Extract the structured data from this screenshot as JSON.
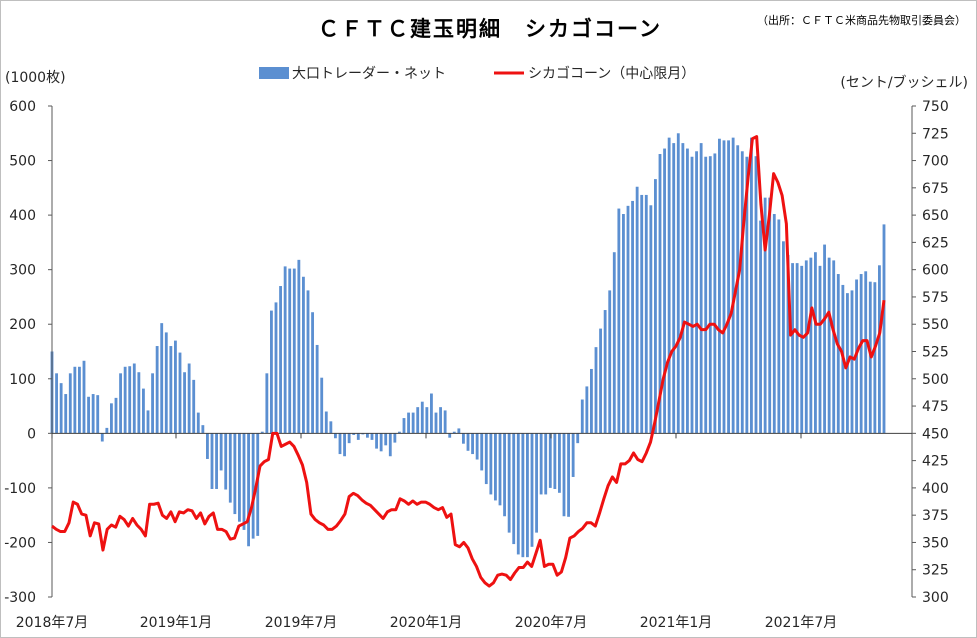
{
  "chart_data": {
    "type": "bar+line",
    "title": "ＣＦＴＣ建玉明細　シカゴコーン",
    "source": "（出所：ＣＦＴＣ米商品先物取引委員会）",
    "left_axis_unit": "(1000枚)",
    "right_axis_unit": "(セント/ブッシェル)",
    "y_left": {
      "min": -300,
      "max": 600,
      "ticks": [
        "600",
        "500",
        "400",
        "300",
        "200",
        "100",
        "0",
        "-100",
        "-200",
        "-300"
      ]
    },
    "y_right": {
      "min": 300,
      "max": 750,
      "ticks": [
        "750",
        "725",
        "700",
        "675",
        "650",
        "625",
        "600",
        "575",
        "550",
        "525",
        "500",
        "475",
        "450",
        "425",
        "400",
        "375",
        "350",
        "325",
        "300"
      ]
    },
    "x_labels": [
      "2018年7月",
      "2019年1月",
      "2019年7月",
      "2020年1月",
      "2020年7月",
      "2021年1月",
      "2021年7月"
    ],
    "grid": false,
    "legend": "top-center",
    "series": [
      {
        "name": "大口トレーダー・ネット",
        "type": "bar",
        "axis": "left",
        "color": "#5b8fd1",
        "values": [
          150,
          110,
          92,
          72,
          110,
          122,
          122,
          133,
          67,
          72,
          70,
          -15,
          10,
          55,
          65,
          110,
          122,
          123,
          128,
          112,
          82,
          42,
          110,
          160,
          202,
          185,
          160,
          170,
          148,
          112,
          128,
          98,
          38,
          15,
          -47,
          -102,
          -102,
          -68,
          -103,
          -127,
          -148,
          -162,
          -177,
          -207,
          -193,
          -188,
          3,
          110,
          225,
          240,
          270,
          306,
          302,
          302,
          318,
          287,
          262,
          222,
          162,
          102,
          40,
          22,
          -9,
          -38,
          -42,
          -18,
          -3,
          -12,
          -2,
          -8,
          -12,
          -28,
          -33,
          -22,
          -42,
          -17,
          3,
          28,
          38,
          38,
          48,
          58,
          48,
          73,
          38,
          48,
          42,
          -8,
          3,
          9,
          -19,
          -32,
          -38,
          -48,
          -68,
          -93,
          -112,
          -123,
          -132,
          -152,
          -182,
          -203,
          -222,
          -227,
          -227,
          -208,
          -182,
          -112,
          -112,
          -100,
          -102,
          -109,
          -152,
          -153,
          -80,
          -18,
          62,
          86,
          118,
          158,
          192,
          226,
          262,
          332,
          412,
          402,
          417,
          426,
          452,
          437,
          437,
          418,
          466,
          512,
          522,
          542,
          532,
          550,
          532,
          522,
          507,
          517,
          532,
          507,
          508,
          513,
          540,
          537,
          537,
          542,
          528,
          517,
          507,
          542,
          508,
          390,
          432,
          432,
          402,
          392,
          352,
          327,
          312,
          312,
          307,
          317,
          322,
          332,
          307,
          346,
          322,
          317,
          292,
          272,
          257,
          262,
          282,
          292,
          297,
          278,
          277,
          308,
          383
        ]
      },
      {
        "name": "シカゴコーン（中心限月）",
        "type": "line",
        "axis": "right",
        "color": "#ee1111",
        "values": [
          365,
          362,
          360,
          360,
          368,
          387,
          385,
          376,
          375,
          356,
          368,
          367,
          343,
          362,
          366,
          364,
          374,
          371,
          365,
          372,
          366,
          362,
          356,
          385,
          385,
          386,
          375,
          372,
          378,
          369,
          378,
          377,
          380,
          379,
          372,
          377,
          367,
          374,
          377,
          362,
          362,
          360,
          353,
          354,
          365,
          367,
          369,
          382,
          400,
          420,
          424,
          426,
          450,
          450,
          438,
          440,
          442,
          438,
          430,
          421,
          405,
          376,
          371,
          368,
          366,
          362,
          362,
          365,
          370,
          376,
          392,
          395,
          393,
          389,
          386,
          384,
          380,
          376,
          372,
          378,
          380,
          380,
          390,
          388,
          385,
          388,
          385,
          387,
          387,
          385,
          382,
          380,
          382,
          373,
          376,
          348,
          346,
          350,
          345,
          335,
          328,
          318,
          313,
          310,
          313,
          320,
          321,
          320,
          316,
          322,
          327,
          327,
          332,
          328,
          340,
          352,
          328,
          330,
          330,
          320,
          323,
          336,
          354,
          356,
          360,
          363,
          368,
          368,
          365,
          377,
          390,
          402,
          410,
          405,
          422,
          422,
          425,
          432,
          426,
          424,
          432,
          442,
          460,
          480,
          500,
          515,
          525,
          530,
          538,
          552,
          550,
          548,
          550,
          545,
          545,
          550,
          550,
          545,
          542,
          550,
          560,
          580,
          600,
          645,
          685,
          720,
          722,
          660,
          618,
          650,
          688,
          680,
          668,
          642,
          540,
          545,
          540,
          538,
          542,
          565,
          550,
          550,
          555,
          561,
          545,
          532,
          525,
          510,
          520,
          518,
          528,
          535,
          535,
          520,
          530,
          542,
          572
        ]
      }
    ]
  }
}
